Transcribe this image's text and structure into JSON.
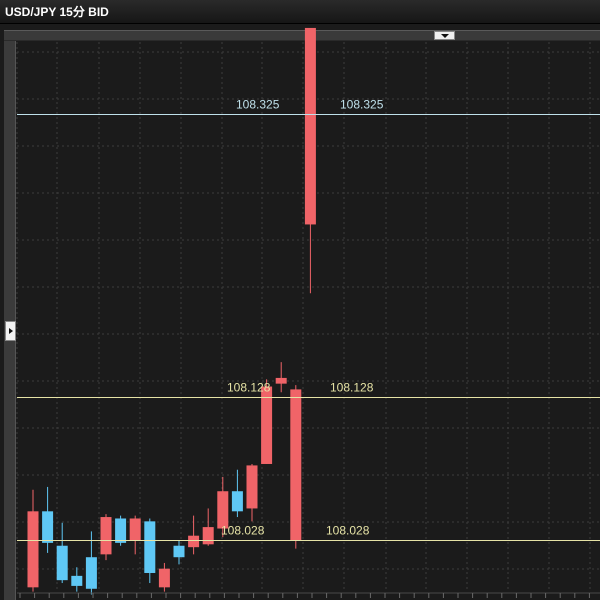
{
  "window": {
    "title": "USD/JPY 15分 BID"
  },
  "colors": {
    "background": "#1b1b1b",
    "grid": "#3c3c3c",
    "up": "#5fc8f5",
    "down": "#f06468",
    "line_top": "#bfe0ea",
    "line_mid": "#e6e3a6",
    "line_low": "#e6e3a6",
    "label_top": "#bfe0ea",
    "label_mid": "#e6e3a6",
    "label_low": "#e6e3a6"
  },
  "controls": {
    "scroll_button_icon": "chevron-down-icon",
    "side_toggle_icon": "triangle-right-icon"
  },
  "chart_data": {
    "type": "candlestick",
    "title": "USD/JPY 15分 BID",
    "price_range": [
      107.98,
      108.39
    ],
    "grid": true,
    "price_lines": [
      {
        "value": 108.325,
        "label_left": "108.325",
        "label_right": "108.325",
        "color": "#bfe0ea"
      },
      {
        "value": 108.128,
        "label_left": "108.128",
        "label_right": "108.128",
        "color": "#e6e3a6"
      },
      {
        "value": 108.028,
        "label_left": "108.028",
        "label_right": "108.028",
        "color": "#e6e3a6"
      }
    ],
    "candles": [
      {
        "open": 108.048,
        "close": 107.995,
        "high": 108.063,
        "low": 107.992
      },
      {
        "open": 108.026,
        "close": 108.048,
        "high": 108.065,
        "low": 108.019
      },
      {
        "open": 108.0,
        "close": 108.024,
        "high": 108.04,
        "low": 107.998
      },
      {
        "open": 107.996,
        "close": 108.003,
        "high": 108.009,
        "low": 107.992
      },
      {
        "open": 107.994,
        "close": 108.016,
        "high": 108.034,
        "low": 107.99
      },
      {
        "open": 108.044,
        "close": 108.018,
        "high": 108.046,
        "low": 108.014
      },
      {
        "open": 108.026,
        "close": 108.043,
        "high": 108.045,
        "low": 108.024
      },
      {
        "open": 108.043,
        "close": 108.028,
        "high": 108.045,
        "low": 108.018
      },
      {
        "open": 108.005,
        "close": 108.041,
        "high": 108.043,
        "low": 107.998
      },
      {
        "open": 108.008,
        "close": 107.995,
        "high": 108.012,
        "low": 107.992
      },
      {
        "open": 108.016,
        "close": 108.024,
        "high": 108.028,
        "low": 108.011
      },
      {
        "open": 108.031,
        "close": 108.023,
        "high": 108.045,
        "low": 108.018
      },
      {
        "open": 108.037,
        "close": 108.025,
        "high": 108.05,
        "low": 108.024
      },
      {
        "open": 108.062,
        "close": 108.036,
        "high": 108.072,
        "low": 108.03
      },
      {
        "open": 108.048,
        "close": 108.062,
        "high": 108.077,
        "low": 108.044
      },
      {
        "open": 108.08,
        "close": 108.05,
        "high": 108.081,
        "low": 108.041
      },
      {
        "open": 108.135,
        "close": 108.081,
        "high": 108.14,
        "low": 108.081
      },
      {
        "open": 108.141,
        "close": 108.137,
        "high": 108.152,
        "low": 108.131
      },
      {
        "open": 108.133,
        "close": 108.028,
        "high": 108.136,
        "low": 108.022
      },
      {
        "open": 108.385,
        "close": 108.248,
        "high": 108.385,
        "low": 108.2
      }
    ]
  }
}
